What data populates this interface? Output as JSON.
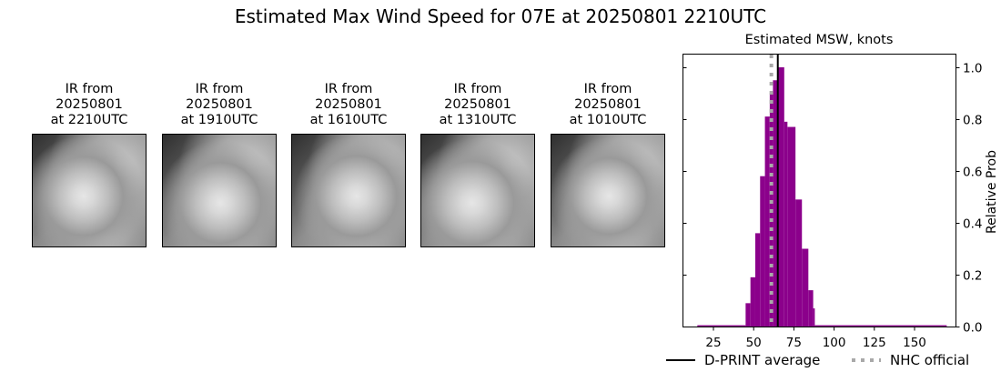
{
  "title": "Estimated Max Wind Speed for 07E at 20250801 2210UTC",
  "panels": [
    {
      "line1": "IR from",
      "line2": "20250801",
      "line3": "at 2210UTC"
    },
    {
      "line1": "IR from",
      "line2": "20250801",
      "line3": "at 1910UTC"
    },
    {
      "line1": "IR from",
      "line2": "20250801",
      "line3": "at 1610UTC"
    },
    {
      "line1": "IR from",
      "line2": "20250801",
      "line3": "at 1310UTC"
    },
    {
      "line1": "IR from",
      "line2": "20250801",
      "line3": "at 1010UTC"
    }
  ],
  "legend": {
    "dprint": "D-PRINT average",
    "nhc": "NHC official"
  },
  "colors": {
    "bars": "#8b008b",
    "dprint_line": "#000000",
    "nhc_line": "#a9a9a9"
  },
  "chart_data": {
    "type": "bar",
    "title": "Estimated MSW, knots",
    "xlabel": "",
    "ylabel": "Relative Prob",
    "xlim": [
      6,
      172
    ],
    "ylim": [
      0,
      1.05
    ],
    "xticks": [
      25,
      50,
      75,
      100,
      125,
      150
    ],
    "yticks": [
      0.0,
      0.2,
      0.4,
      0.6,
      0.8,
      1.0
    ],
    "ytick_labels": [
      "0.0",
      "0.2",
      "0.4",
      "0.6",
      "0.8",
      "1.0"
    ],
    "y_axis_side": "right",
    "grid": false,
    "legend_position": "below",
    "bins": [
      {
        "x0": 15,
        "x1": 45,
        "value": 0.005
      },
      {
        "x0": 45,
        "x1": 48,
        "value": 0.09
      },
      {
        "x0": 48,
        "x1": 51,
        "value": 0.19
      },
      {
        "x0": 51,
        "x1": 54,
        "value": 0.36
      },
      {
        "x0": 54,
        "x1": 57,
        "value": 0.58
      },
      {
        "x0": 57,
        "x1": 60,
        "value": 0.81
      },
      {
        "x0": 60,
        "x1": 62,
        "value": 0.9
      },
      {
        "x0": 62,
        "x1": 65,
        "value": 0.95
      },
      {
        "x0": 65,
        "x1": 69,
        "value": 1.0
      },
      {
        "x0": 69,
        "x1": 71,
        "value": 0.79
      },
      {
        "x0": 71,
        "x1": 76,
        "value": 0.77
      },
      {
        "x0": 76,
        "x1": 80,
        "value": 0.49
      },
      {
        "x0": 80,
        "x1": 84,
        "value": 0.3
      },
      {
        "x0": 84,
        "x1": 87,
        "value": 0.14
      },
      {
        "x0": 87,
        "x1": 88,
        "value": 0.07
      },
      {
        "x0": 88,
        "x1": 170,
        "value": 0.005
      }
    ],
    "dprint_average_kt": 65,
    "nhc_official_kt": 61
  }
}
